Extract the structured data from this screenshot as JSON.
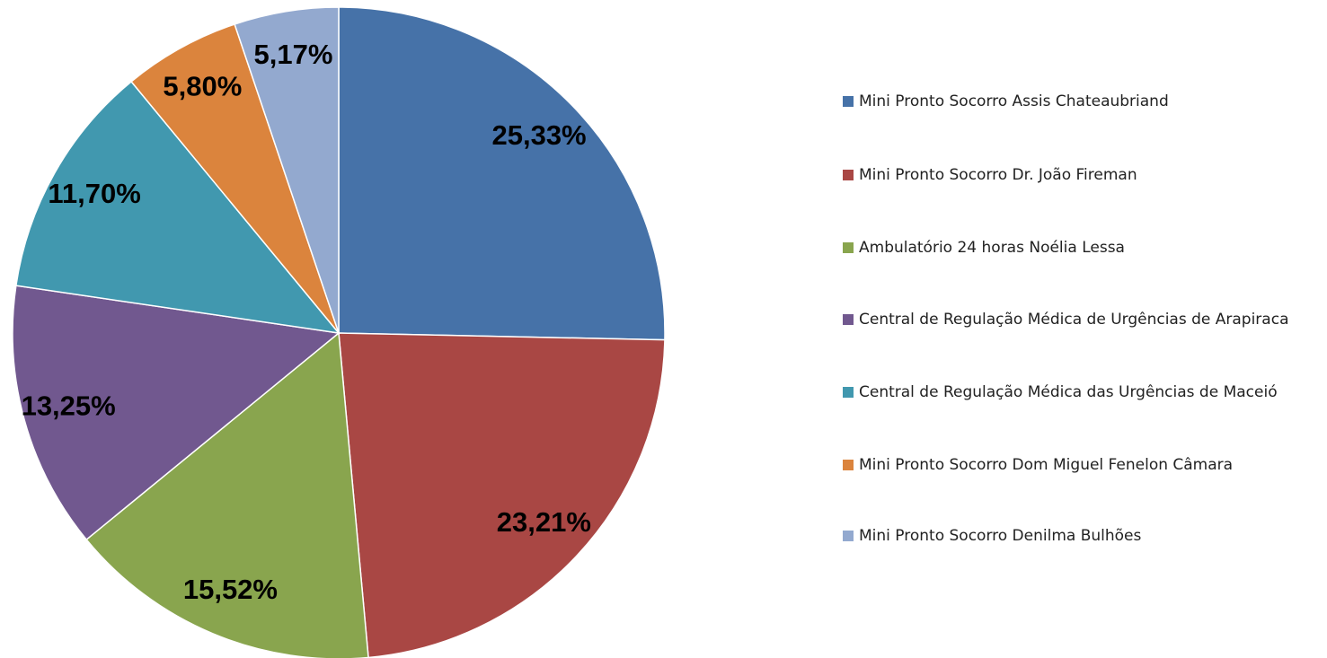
{
  "chart_data": {
    "type": "pie",
    "categories": [
      "Mini Pronto Socorro Assis Chateaubriand",
      "Mini Pronto Socorro Dr. João Fireman",
      "Ambulatório 24 horas Noélia Lessa",
      "Central de Regulação Médica de Urgências de Arapiraca",
      "Central de Regulação Médica das Urgências de Maceió",
      "Mini Pronto Socorro Dom Miguel Fenelon Câmara",
      "Mini Pronto Socorro Denilma Bulhões"
    ],
    "values": [
      25.33,
      23.21,
      15.52,
      13.25,
      11.7,
      5.8,
      5.17
    ],
    "value_labels": [
      "25,33%",
      "23,21%",
      "15,52%",
      "13,25%",
      "11,70%",
      "5,80%",
      "5,17%"
    ],
    "colors": [
      "#4672a8",
      "#a94744",
      "#89a54e",
      "#71588f",
      "#4198af",
      "#db843d",
      "#93a9cf"
    ],
    "legend": "right"
  }
}
